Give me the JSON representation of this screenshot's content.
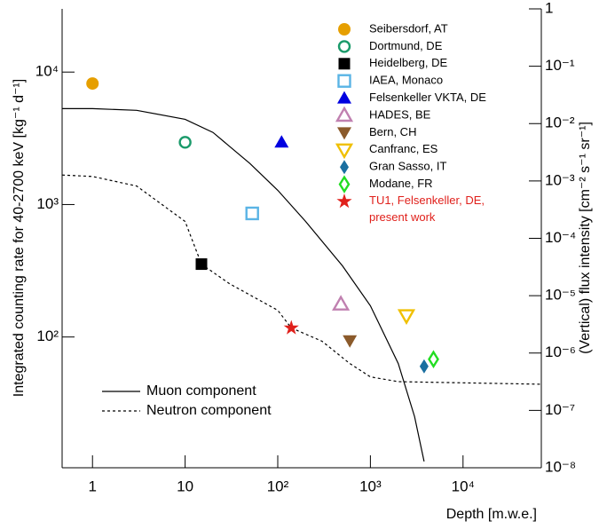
{
  "chart_data": {
    "type": "scatter",
    "x_label": "Depth [m.w.e.]",
    "y_label": "Integrated counting rate for 40-2700 keV [kg⁻¹ d⁻¹]",
    "y2_label": "(Vertical) flux intensity [cm⁻² s⁻¹ sr⁻¹]",
    "xscale": "log",
    "yscale": "log",
    "y2scale": "log",
    "xlim": [
      0.47,
      70000
    ],
    "ylim": [
      10.3,
      30000
    ],
    "y2lim": [
      1e-08,
      1
    ],
    "xticks": [
      1,
      10,
      {
        "value": 100,
        "label": "10²"
      },
      {
        "value": 1000,
        "label": "10³"
      },
      {
        "value": 10000,
        "label": "10⁴"
      }
    ],
    "yticks": [
      {
        "value": 100,
        "label": "10²"
      },
      {
        "value": 1000,
        "label": "10³"
      },
      {
        "value": 10000,
        "label": "10⁴"
      }
    ],
    "y2ticks": [
      1,
      {
        "value": 0.1,
        "label": "10⁻¹"
      },
      {
        "value": 0.01,
        "label": "10⁻²"
      },
      {
        "value": 0.001,
        "label": "10⁻³"
      },
      {
        "value": 0.0001,
        "label": "10⁻⁴"
      },
      {
        "value": 1e-05,
        "label": "10⁻⁵"
      },
      {
        "value": 1e-06,
        "label": "10⁻⁶"
      },
      {
        "value": 1e-07,
        "label": "10⁻⁷"
      },
      {
        "value": 1e-08,
        "label": "10⁻⁸"
      }
    ],
    "legend": "upper right",
    "series": [
      {
        "name": "Seibersdorf, AT",
        "color": "#e69f00",
        "marker": "circle",
        "x": [
          1
        ],
        "values": [
          8200
        ]
      },
      {
        "name": "Dortmund, DE",
        "color": "#1a9a6a",
        "marker": "open-circle",
        "x": [
          10
        ],
        "values": [
          2950
        ]
      },
      {
        "name": "Heidelberg, DE",
        "color": "#000000",
        "marker": "square",
        "x": [
          15
        ],
        "values": [
          355
        ]
      },
      {
        "name": "IAEA, Monaco",
        "color": "#5ab4e5",
        "marker": "open-square",
        "x": [
          53
        ],
        "values": [
          857
        ]
      },
      {
        "name": "Felsenkeller VKTA, DE",
        "color": "#0000e0",
        "marker": "triangle-up",
        "x": [
          110
        ],
        "values": [
          2950
        ]
      },
      {
        "name": "HADES, BE",
        "color": "#c080b0",
        "marker": "open-triangle-up",
        "x": [
          480
        ],
        "values": [
          177
        ]
      },
      {
        "name": "Bern, CH",
        "color": "#8b5a2b",
        "marker": "triangle-down",
        "x": [
          600
        ],
        "values": [
          94
        ]
      },
      {
        "name": "Canfranc, ES",
        "color": "#f0c000",
        "marker": "open-triangle-down",
        "x": [
          2450
        ],
        "values": [
          145
        ]
      },
      {
        "name": "Gran Sasso, IT",
        "color": "#1a6fa0",
        "marker": "diamond",
        "x": [
          3800
        ],
        "values": [
          60
        ]
      },
      {
        "name": "Modane, FR",
        "color": "#22dd22",
        "marker": "open-diamond",
        "x": [
          4800
        ],
        "values": [
          68
        ]
      },
      {
        "name": "TU1, Felsenkeller, DE,\npresent work",
        "color": "#e0201b",
        "marker": "star",
        "label_color": "#e0201b",
        "x": [
          140
        ],
        "values": [
          117
        ]
      }
    ],
    "curves_legend": "lower left",
    "curves": [
      {
        "name": "Muon component",
        "color": "#000000",
        "style": "solid",
        "x": [
          0.47,
          1,
          3,
          10,
          20,
          50,
          100,
          200,
          500,
          1000,
          2000,
          3000,
          3800
        ],
        "values": [
          5300,
          5300,
          5140,
          4400,
          3500,
          2040,
          1280,
          745,
          344,
          172,
          63,
          25,
          11.5
        ]
      },
      {
        "name": "Neutron component",
        "color": "#000000",
        "style": "dashed",
        "x": [
          0.47,
          1,
          3,
          10,
          15,
          30,
          100,
          140,
          300,
          600,
          1000,
          2000,
          70000
        ],
        "values": [
          1670,
          1630,
          1380,
          745,
          355,
          253,
          159,
          117,
          93,
          63,
          50,
          46,
          44
        ]
      }
    ]
  }
}
